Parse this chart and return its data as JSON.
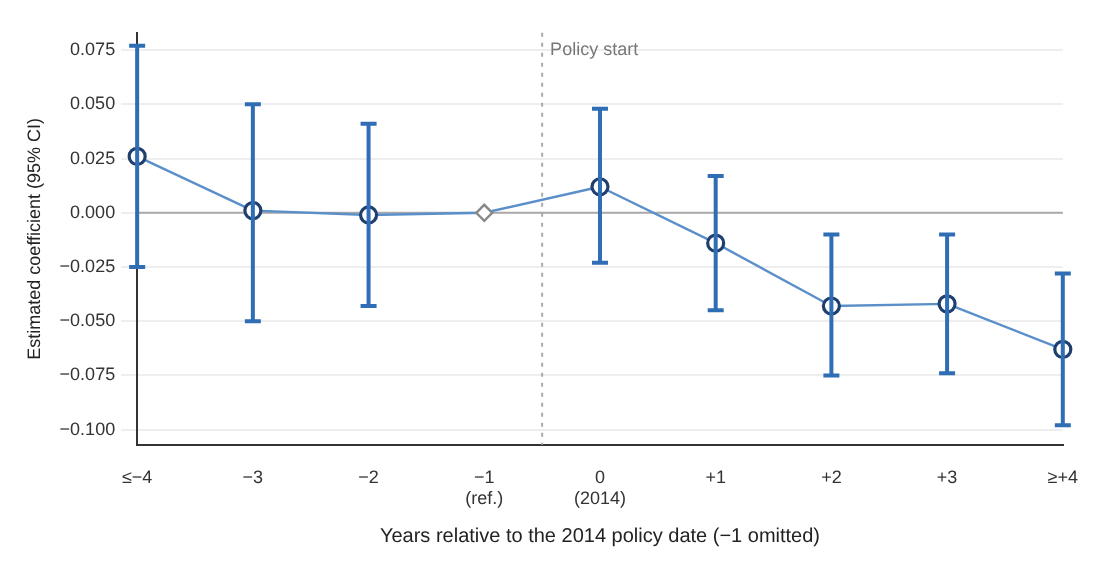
{
  "chart_data": {
    "type": "line",
    "xlabel": "Years relative to the 2014 policy date (−1 omitted)",
    "ylabel": "Estimated coefficient (95% CI)",
    "categories": [
      "≤−4",
      "−3",
      "−2",
      "−1\n(ref.)",
      "0\n(2014)",
      "+1",
      "+2",
      "+3",
      "≥+4"
    ],
    "series": [
      {
        "type": "line",
        "color": "#5b8fc9",
        "marker": "circle",
        "values": [
          0.026,
          0.001,
          -0.001,
          0,
          0.012,
          -0.014,
          -0.043,
          -0.042,
          -0.063
        ],
        "errors": [
          [
            -0.025,
            0.077
          ],
          [
            -0.05,
            0.05
          ],
          [
            -0.043,
            0.041
          ],
          null,
          [
            -0.023,
            0.048
          ],
          [
            -0.045,
            0.017
          ],
          [
            -0.075,
            -0.01
          ],
          [
            -0.074,
            -0.01
          ],
          [
            -0.098,
            -0.028
          ]
        ]
      },
      {
        "type": "scatter",
        "color": "#888888",
        "marker": "diamond",
        "x": [
          "−1\n(ref.)"
        ],
        "values": [
          0
        ]
      }
    ],
    "ylim": [
      -0.107,
      0.083
    ],
    "yticks": [
      {
        "value": -0.1,
        "label": "−0.100"
      },
      {
        "value": -0.075,
        "label": "−0.075"
      },
      {
        "value": -0.05,
        "label": "−0.050"
      },
      {
        "value": -0.025,
        "label": "−0.025"
      },
      {
        "value": 0,
        "label": "0.000"
      },
      {
        "value": 0.025,
        "label": "0.025"
      },
      {
        "value": 0.05,
        "label": "0.050"
      },
      {
        "value": 0.075,
        "label": "0.075"
      }
    ],
    "grid": "y",
    "legend": false,
    "ref_lines": [
      {
        "axis": "y",
        "value": 0,
        "color": "#aaaaaa",
        "line_style": "solid"
      },
      {
        "axis": "x",
        "value": "0\n(2014)",
        "label": "Policy start",
        "color": "#aaaaaa",
        "line_style": "dotted"
      }
    ]
  }
}
